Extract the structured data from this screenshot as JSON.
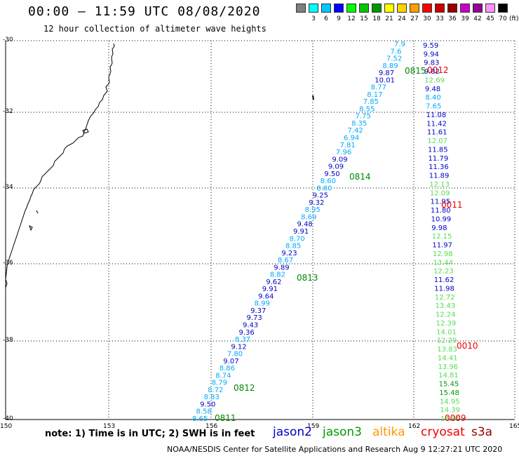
{
  "header": {
    "title": "00:00 – 11:59 UTC 08/08/2020",
    "subtitle": "12 hour collection of altimeter wave heights"
  },
  "legend": {
    "unit": "(ft)",
    "bins": [
      {
        "label": "",
        "color": "#7f7f7f"
      },
      {
        "label": "3",
        "color": "#00ffff"
      },
      {
        "label": "6",
        "color": "#00c8ff"
      },
      {
        "label": "9",
        "color": "#0000ff"
      },
      {
        "label": "12",
        "color": "#00ff00"
      },
      {
        "label": "15",
        "color": "#00c800"
      },
      {
        "label": "18",
        "color": "#009600"
      },
      {
        "label": "21",
        "color": "#ffff00"
      },
      {
        "label": "24",
        "color": "#ffd200"
      },
      {
        "label": "27",
        "color": "#ffa000"
      },
      {
        "label": "30",
        "color": "#ff0000"
      },
      {
        "label": "33",
        "color": "#c80000"
      },
      {
        "label": "36",
        "color": "#960000"
      },
      {
        "label": "39",
        "color": "#c800c8"
      },
      {
        "label": "42",
        "color": "#960096"
      },
      {
        "label": "45",
        "color": "#ff96ff"
      },
      {
        "label": "70",
        "color": "#000000"
      }
    ]
  },
  "map": {
    "lat_labels": [
      "-30",
      "-32",
      "-34",
      "-36",
      "-38",
      "-40"
    ],
    "lon_labels": [
      "150",
      "153",
      "156",
      "159",
      "162",
      "165"
    ],
    "track_a": [
      {
        "v": "8.65",
        "c": "#00aaff"
      },
      {
        "v": "8.58",
        "c": "#00aaff"
      },
      {
        "v": "9.50",
        "c": "#0000cc"
      },
      {
        "v": "8.83",
        "c": "#00aaff"
      },
      {
        "v": "8.72",
        "c": "#00aaff"
      },
      {
        "v": "8.79",
        "c": "#00aaff"
      },
      {
        "v": "8.74",
        "c": "#00aaff"
      },
      {
        "v": "8.86",
        "c": "#00aaff"
      },
      {
        "v": "9.07",
        "c": "#0000cc"
      },
      {
        "v": "7.80",
        "c": "#00aaff"
      },
      {
        "v": "9.12",
        "c": "#0000cc"
      },
      {
        "v": "8.37",
        "c": "#00aaff"
      },
      {
        "v": "9.36",
        "c": "#0000cc"
      },
      {
        "v": "9.43",
        "c": "#0000cc"
      },
      {
        "v": "9.73",
        "c": "#0000cc"
      },
      {
        "v": "9.37",
        "c": "#0000cc"
      },
      {
        "v": "8.99",
        "c": "#00aaff"
      },
      {
        "v": "9.64",
        "c": "#0000cc"
      },
      {
        "v": "9.91",
        "c": "#0000cc"
      },
      {
        "v": "9.62",
        "c": "#0000cc"
      },
      {
        "v": "8.82",
        "c": "#00aaff"
      },
      {
        "v": "9.89",
        "c": "#0000cc"
      },
      {
        "v": "8.67",
        "c": "#00aaff"
      },
      {
        "v": "9.23",
        "c": "#0000cc"
      },
      {
        "v": "8.85",
        "c": "#00aaff"
      },
      {
        "v": "8.70",
        "c": "#00aaff"
      },
      {
        "v": "9.91",
        "c": "#0000cc"
      },
      {
        "v": "9.48",
        "c": "#0000cc"
      },
      {
        "v": "8.69",
        "c": "#00aaff"
      },
      {
        "v": "8.95",
        "c": "#00aaff"
      },
      {
        "v": "9.32",
        "c": "#0000cc"
      },
      {
        "v": "9.25",
        "c": "#0000cc"
      },
      {
        "v": "8.80",
        "c": "#00aaff"
      },
      {
        "v": "8.60",
        "c": "#00aaff"
      },
      {
        "v": "9.50",
        "c": "#0000cc"
      },
      {
        "v": "9.09",
        "c": "#0000cc"
      },
      {
        "v": "9.09",
        "c": "#0000cc"
      },
      {
        "v": "7.96",
        "c": "#00aaff"
      },
      {
        "v": "7.81",
        "c": "#00aaff"
      },
      {
        "v": "6.94",
        "c": "#00aaff"
      },
      {
        "v": "7.42",
        "c": "#00aaff"
      },
      {
        "v": "8.35",
        "c": "#00aaff"
      },
      {
        "v": "7.75",
        "c": "#00aaff"
      },
      {
        "v": "8.55",
        "c": "#00aaff"
      },
      {
        "v": "7.85",
        "c": "#00aaff"
      },
      {
        "v": "8.17",
        "c": "#00aaff"
      },
      {
        "v": "8.77",
        "c": "#00aaff"
      },
      {
        "v": "10.01",
        "c": "#0000cc"
      },
      {
        "v": "9.87",
        "c": "#0000cc"
      },
      {
        "v": "8.89",
        "c": "#00aaff"
      },
      {
        "v": "7.52",
        "c": "#00aaff"
      },
      {
        "v": "7.6",
        "c": "#00aaff"
      },
      {
        "v": "7.9",
        "c": "#00aaff"
      }
    ],
    "track_b": [
      {
        "v": "9.59",
        "c": "#0000cc"
      },
      {
        "v": "9.94",
        "c": "#0000cc"
      },
      {
        "v": "9.83",
        "c": "#0000cc"
      },
      {
        "v": "9.82",
        "c": "#0000cc"
      },
      {
        "v": "12.69",
        "c": "#55dd55"
      },
      {
        "v": "9.48",
        "c": "#0000cc"
      },
      {
        "v": "8.40",
        "c": "#00aaff"
      },
      {
        "v": "7.65",
        "c": "#00aaff"
      },
      {
        "v": "11.08",
        "c": "#0000cc"
      },
      {
        "v": "11.42",
        "c": "#0000cc"
      },
      {
        "v": "11.61",
        "c": "#0000cc"
      },
      {
        "v": "12.07",
        "c": "#55dd55"
      },
      {
        "v": "11.85",
        "c": "#0000cc"
      },
      {
        "v": "11.79",
        "c": "#0000cc"
      },
      {
        "v": "11.36",
        "c": "#0000cc"
      },
      {
        "v": "11.89",
        "c": "#0000cc"
      },
      {
        "v": "12.13",
        "c": "#55dd55"
      },
      {
        "v": "12.09",
        "c": "#55dd55"
      },
      {
        "v": "11.95",
        "c": "#0000cc"
      },
      {
        "v": "11.80",
        "c": "#0000cc"
      },
      {
        "v": "10.99",
        "c": "#0000cc"
      },
      {
        "v": "9.98",
        "c": "#0000cc"
      },
      {
        "v": "12.15",
        "c": "#55dd55"
      },
      {
        "v": "11.97",
        "c": "#0000cc"
      },
      {
        "v": "12.98",
        "c": "#55dd55"
      },
      {
        "v": "13.44",
        "c": "#55dd55"
      },
      {
        "v": "12.23",
        "c": "#55dd55"
      },
      {
        "v": "11.62",
        "c": "#0000cc"
      },
      {
        "v": "11.98",
        "c": "#0000cc"
      },
      {
        "v": "12.72",
        "c": "#55dd55"
      },
      {
        "v": "13.43",
        "c": "#55dd55"
      },
      {
        "v": "12.24",
        "c": "#55dd55"
      },
      {
        "v": "12.39",
        "c": "#55dd55"
      },
      {
        "v": "14.01",
        "c": "#55dd55"
      },
      {
        "v": "12.29",
        "c": "#55dd55"
      },
      {
        "v": "13.83",
        "c": "#55dd55"
      },
      {
        "v": "14.41",
        "c": "#55dd55"
      },
      {
        "v": "13.96",
        "c": "#55dd55"
      },
      {
        "v": "14.81",
        "c": "#55dd55"
      },
      {
        "v": "15.45",
        "c": "#009900"
      },
      {
        "v": "15.48",
        "c": "#009900"
      },
      {
        "v": "14.95",
        "c": "#55dd55"
      },
      {
        "v": "14.39",
        "c": "#55dd55"
      },
      {
        "v": "14.05",
        "c": "#55dd55"
      }
    ],
    "time_labels": [
      {
        "t": "0811",
        "c": "#008800"
      },
      {
        "t": "0812",
        "c": "#008800"
      },
      {
        "t": "0813",
        "c": "#008800"
      },
      {
        "t": "0814",
        "c": "#008800"
      },
      {
        "t": "0815",
        "c": "#008800"
      },
      {
        "t": "0012",
        "c": "#ee0000"
      },
      {
        "t": "0011",
        "c": "#ee0000"
      },
      {
        "t": "0010",
        "c": "#ee0000"
      },
      {
        "t": "0009",
        "c": "#ee0000"
      }
    ]
  },
  "footer": {
    "note": "note:  1) Time is in UTC;  2) SWH is in feet",
    "satellites": [
      {
        "name": "jason2",
        "color": "#0000cc"
      },
      {
        "name": "jason3",
        "color": "#009900"
      },
      {
        "name": "altika",
        "color": "#ff9900"
      },
      {
        "name": "cryosat",
        "color": "#ee0000"
      },
      {
        "name": "s3a",
        "color": "#990000"
      }
    ],
    "credit": "NOAA/NESDIS Center for Satellite Applications and Research    Aug  9 12:27:21 UTC 2020"
  }
}
